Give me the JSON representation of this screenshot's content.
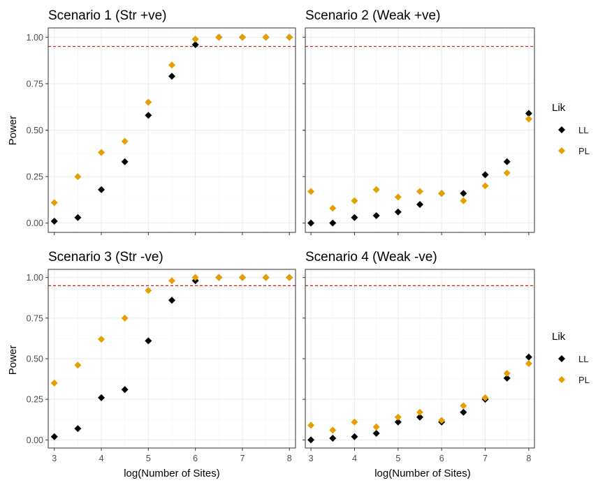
{
  "chart_data": {
    "type": "scatter",
    "xlabel": "log(Number of Sites)",
    "ylabel": "Power",
    "xlim": [
      2.87,
      8.13
    ],
    "ylim": [
      -0.05,
      1.05
    ],
    "x_ticks": [
      "3",
      "4",
      "5",
      "6",
      "7",
      "8"
    ],
    "y_ticks": [
      "0.00",
      "0.25",
      "0.50",
      "0.75",
      "1.00"
    ],
    "reference_line": 0.95,
    "reference_line_color": "#cc0000",
    "grid": true,
    "legend": {
      "title": "Lik",
      "placement": "right",
      "entries": [
        {
          "label": "LL",
          "color": "#000000"
        },
        {
          "label": "PL",
          "color": "#e69f00"
        }
      ]
    },
    "x": [
      3,
      3.5,
      4,
      4.5,
      5,
      5.5,
      6,
      6.5,
      7,
      7.5,
      8
    ],
    "panels": [
      {
        "title": "Scenario 1 (Str +ve)",
        "series": [
          {
            "name": "LL",
            "color": "#000000",
            "values": [
              0.01,
              0.03,
              0.18,
              0.33,
              0.58,
              0.79,
              0.96,
              1.0,
              1.0,
              1.0,
              1.0
            ]
          },
          {
            "name": "PL",
            "color": "#e69f00",
            "values": [
              0.11,
              0.25,
              0.38,
              0.44,
              0.65,
              0.85,
              0.99,
              1.0,
              1.0,
              1.0,
              1.0
            ]
          }
        ]
      },
      {
        "title": "Scenario 2 (Weak +ve)",
        "series": [
          {
            "name": "LL",
            "color": "#000000",
            "values": [
              0.0,
              0.0,
              0.03,
              0.04,
              0.06,
              0.1,
              0.16,
              0.16,
              0.26,
              0.33,
              0.59
            ]
          },
          {
            "name": "PL",
            "color": "#e69f00",
            "values": [
              0.17,
              0.08,
              0.12,
              0.18,
              0.14,
              0.17,
              0.16,
              0.12,
              0.2,
              0.27,
              0.56
            ]
          }
        ]
      },
      {
        "title": "Scenario 3 (Str -ve)",
        "series": [
          {
            "name": "LL",
            "color": "#000000",
            "values": [
              0.02,
              0.07,
              0.26,
              0.31,
              0.61,
              0.86,
              0.98,
              1.0,
              1.0,
              1.0,
              1.0
            ]
          },
          {
            "name": "PL",
            "color": "#e69f00",
            "values": [
              0.35,
              0.46,
              0.62,
              0.75,
              0.92,
              0.98,
              1.0,
              1.0,
              1.0,
              1.0,
              1.0
            ]
          }
        ]
      },
      {
        "title": "Scenario 4 (Weak -ve)",
        "series": [
          {
            "name": "LL",
            "color": "#000000",
            "values": [
              0.0,
              0.01,
              0.02,
              0.04,
              0.11,
              0.14,
              0.11,
              0.17,
              0.25,
              0.38,
              0.51
            ]
          },
          {
            "name": "PL",
            "color": "#e69f00",
            "values": [
              0.09,
              0.06,
              0.11,
              0.08,
              0.14,
              0.17,
              0.12,
              0.21,
              0.26,
              0.41,
              0.47
            ]
          }
        ]
      }
    ]
  }
}
